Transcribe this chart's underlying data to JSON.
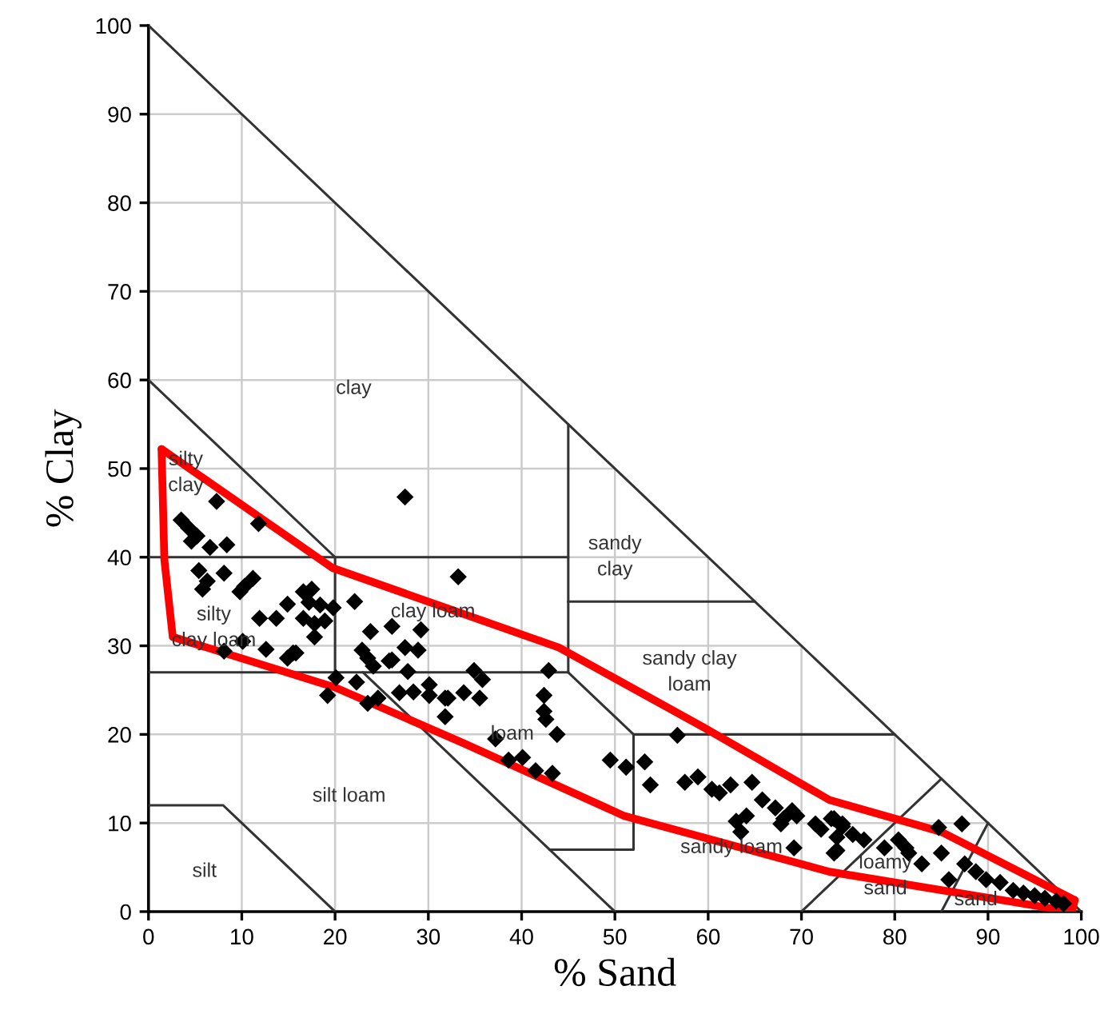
{
  "chart_data": {
    "type": "scatter",
    "xlabel": "% Sand",
    "ylabel": "% Clay",
    "xlim": [
      0,
      100
    ],
    "ylim": [
      0,
      100
    ],
    "xticks": [
      0,
      10,
      20,
      30,
      40,
      50,
      60,
      70,
      80,
      90,
      100
    ],
    "yticks": [
      0,
      10,
      20,
      30,
      40,
      50,
      60,
      70,
      80,
      90,
      100
    ],
    "grid": true,
    "series": [
      {
        "type": "line",
        "color": "#333333",
        "x": [
          0,
          100
        ],
        "values": [
          100,
          0
        ]
      },
      {
        "type": "line",
        "color": "#333333",
        "x": [
          0,
          20,
          45
        ],
        "values": [
          60,
          40,
          40
        ]
      },
      {
        "type": "line",
        "color": "#333333",
        "x": [
          45,
          45
        ],
        "values": [
          27,
          55
        ]
      },
      {
        "type": "line",
        "color": "#333333",
        "x": [
          0,
          20,
          20
        ],
        "values": [
          40,
          40,
          27
        ]
      },
      {
        "type": "line",
        "color": "#333333",
        "x": [
          0,
          45
        ],
        "values": [
          27,
          27
        ]
      },
      {
        "type": "line",
        "color": "#333333",
        "x": [
          45,
          52,
          52,
          43
        ],
        "values": [
          27,
          20,
          7,
          7
        ]
      },
      {
        "type": "line",
        "color": "#333333",
        "x": [
          52,
          80
        ],
        "values": [
          20,
          20
        ]
      },
      {
        "type": "line",
        "color": "#333333",
        "x": [
          45,
          65
        ],
        "values": [
          35,
          35
        ]
      },
      {
        "type": "line",
        "color": "#333333",
        "x": [
          23,
          50
        ],
        "values": [
          27,
          0
        ]
      },
      {
        "type": "line",
        "color": "#333333",
        "x": [
          0,
          8,
          20
        ],
        "values": [
          12,
          12,
          0
        ]
      },
      {
        "type": "line",
        "color": "#333333",
        "x": [
          70,
          85
        ],
        "values": [
          0,
          15
        ]
      },
      {
        "type": "line",
        "color": "#333333",
        "x": [
          85,
          90
        ],
        "values": [
          0,
          10
        ]
      },
      {
        "color": "#000000",
        "marker": "diamond",
        "x": [
          27.5,
          7.3,
          11.8,
          3.5,
          4.3,
          5.2,
          4.6,
          6.6,
          8.4,
          5.4,
          8.1,
          6.3,
          5.8,
          11.2,
          9.8,
          10.3,
          14.9,
          16.6,
          17.5,
          17.2,
          18.4,
          19.8,
          16.6,
          17.8,
          18.9,
          11.9,
          13.7,
          17.8,
          22.1,
          10.1,
          8.1,
          12.6,
          14.9,
          15.8,
          33.2,
          23.8,
          26.1,
          29.2,
          22.9,
          23.5,
          24.1,
          26.1,
          27.5,
          28.9,
          27.8,
          20.1,
          22.3,
          26.9,
          28.4,
          30.1,
          19.2,
          24.6,
          31.8,
          25.8,
          34.9,
          35.8,
          42.9,
          42.4,
          42.4,
          42.6,
          43.8,
          33.8,
          35.5,
          32.1,
          30.1,
          23.5,
          31.8,
          37.2,
          38.6,
          40.1,
          41.5,
          43.3,
          15.5,
          49.5,
          51.2,
          53.2,
          53.8,
          56.7,
          57.5,
          58.9,
          60.4,
          61.2,
          62.4,
          64.7,
          65.8,
          64.1,
          63,
          63.5,
          67.2,
          68.1,
          69,
          69.5,
          67.8,
          69.2,
          72.1,
          73.5,
          74.4,
          73.8,
          73.5,
          71.5,
          73.2,
          74.4,
          75.5,
          73.8,
          76.7,
          78.9,
          80.4,
          81.2,
          81.5,
          82.9,
          84.7,
          87.2,
          85,
          85.8,
          87.5,
          88.7,
          89.8,
          91.3,
          92.7,
          93.8,
          95,
          96.1,
          97.3,
          98.1
        ],
        "values": [
          46.8,
          46.3,
          43.8,
          44.2,
          43.3,
          42.4,
          41.8,
          41.1,
          41.4,
          38.5,
          38.2,
          37.3,
          36.4,
          37.6,
          36.1,
          36.7,
          34.7,
          36.1,
          36.4,
          34.9,
          34.6,
          34.3,
          33.1,
          32.5,
          32.8,
          33.1,
          33.1,
          31,
          35,
          30.5,
          29.4,
          29.6,
          28.6,
          29.2,
          37.8,
          31.6,
          32.2,
          31.8,
          29.5,
          28.6,
          27.7,
          28.4,
          29.8,
          29.5,
          27.1,
          26.4,
          25.9,
          24.7,
          24.8,
          24.4,
          24.4,
          24.1,
          24.1,
          28.3,
          27.2,
          26.2,
          27.2,
          24.4,
          22.6,
          21.7,
          20,
          24.7,
          24.1,
          24.1,
          25.6,
          23.5,
          22,
          19.5,
          17.1,
          17.4,
          15.9,
          15.6,
          29.2,
          17.1,
          16.3,
          16.9,
          14.3,
          19.9,
          14.6,
          15.2,
          13.8,
          13.4,
          14.3,
          14.6,
          12.6,
          10.8,
          10.2,
          9,
          11.7,
          10.5,
          11.4,
          10.8,
          9.9,
          7.2,
          9.3,
          10.5,
          9.9,
          8.4,
          6.6,
          9.9,
          10.5,
          9.6,
          8.7,
          6.9,
          8.1,
          7.2,
          8.1,
          7.2,
          6.6,
          5.4,
          9.5,
          9.9,
          6.6,
          3.6,
          5.4,
          4.5,
          3.6,
          3.3,
          2.4,
          2.1,
          1.8,
          1.5,
          1.2,
          0.9
        ]
      },
      {
        "type": "line",
        "color": "#ff0000",
        "x": [
          1.4,
          19.7,
          44,
          59.5,
          73,
          85,
          99.3
        ],
        "values": [
          52.2,
          38.8,
          29.8,
          20.8,
          12.6,
          9,
          1.3
        ]
      },
      {
        "type": "line",
        "color": "#ff0000",
        "x": [
          1.4,
          1.7,
          2.6,
          20,
          33.8,
          51,
          73,
          99,
          99.3
        ],
        "values": [
          52.2,
          39.7,
          31,
          25.3,
          19,
          10.8,
          4.5,
          0,
          1.3
        ]
      }
    ],
    "annotations": [
      "clay",
      "silty\nclay",
      "sandy\nclay",
      "silty\nclay loam",
      "clay loam",
      "sandy clay\nloam",
      "loam",
      "silt loam",
      "silt",
      "sandy loam",
      "loamy\nsand",
      "sand"
    ]
  }
}
